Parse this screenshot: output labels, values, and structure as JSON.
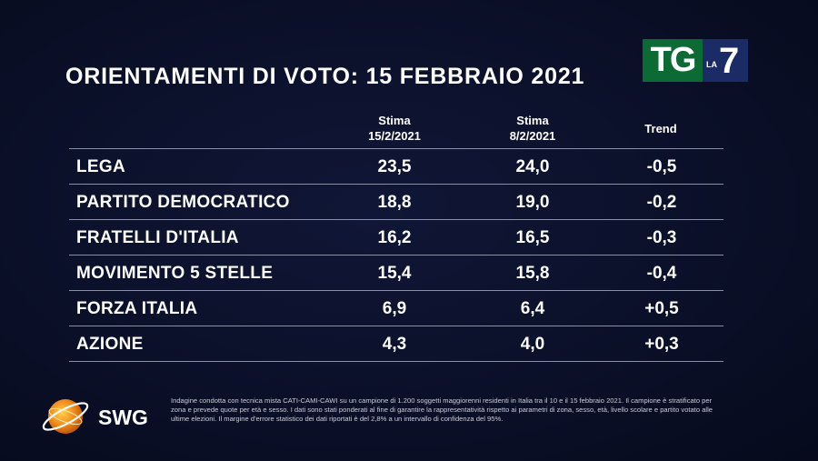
{
  "title": "ORIENTAMENTI DI VOTO: 15 FEBBRAIO 2021",
  "logo": {
    "tg": "TG",
    "la": "LA",
    "seven": "7"
  },
  "columns": {
    "c1_line1": "Stima",
    "c1_line2": "15/2/2021",
    "c2_line1": "Stima",
    "c2_line2": "8/2/2021",
    "c3": "Trend"
  },
  "rows": [
    {
      "party": "LEGA",
      "stima1": "23,5",
      "stima2": "24,0",
      "trend": "-0,5"
    },
    {
      "party": "PARTITO DEMOCRATICO",
      "stima1": "18,8",
      "stima2": "19,0",
      "trend": "-0,2"
    },
    {
      "party": "FRATELLI D'ITALIA",
      "stima1": "16,2",
      "stima2": "16,5",
      "trend": "-0,3"
    },
    {
      "party": "MOVIMENTO 5 STELLE",
      "stima1": "15,4",
      "stima2": "15,8",
      "trend": "-0,4"
    },
    {
      "party": "FORZA ITALIA",
      "stima1": "6,9",
      "stima2": "6,4",
      "trend": "+0,5"
    },
    {
      "party": "AZIONE",
      "stima1": "4,3",
      "stima2": "4,0",
      "trend": "+0,3"
    }
  ],
  "brand": {
    "name": "SWG",
    "icon": "globe-icon"
  },
  "footnote": "Indagine condotta con tecnica mista CATI-CAMI-CAWI su un campione di 1.200 soggetti maggiorenni residenti in Italia tra il 10 e il 15 febbraio 2021. Il campione è stratificato per zona e prevede quote per età e sesso. I dati sono stati ponderati al fine di garantire la rappresentatività rispetto ai parametri di zona, sesso, età, livello scolare e partito votato alle ultime elezioni. Il margine d'errore statistico dei dati riportati è del 2,8% a un intervallo di confidenza del 95%.",
  "colors": {
    "background": "#0b1029",
    "tg_green": "#0c6b35",
    "la7_blue": "#1b2b66",
    "swg_orange": "#f08a1c"
  }
}
